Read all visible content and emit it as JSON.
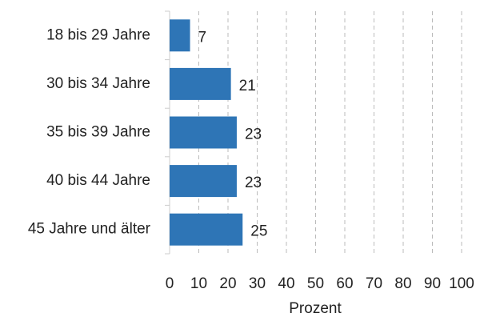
{
  "chart_data": {
    "type": "barh",
    "x_label": "Prozent",
    "categories": [
      "18 bis 29 Jahre",
      "30 bis 34 Jahre",
      "35 bis 39 Jahre",
      "40 bis 44 Jahre",
      "45 Jahre und älter"
    ],
    "values": [
      7,
      21,
      23,
      23,
      25
    ],
    "color": "#2e75b6",
    "xlim": [
      0,
      100
    ],
    "xticks": [
      0,
      10,
      20,
      30,
      40,
      50,
      60,
      70,
      80,
      90,
      100
    ],
    "grid": true
  }
}
